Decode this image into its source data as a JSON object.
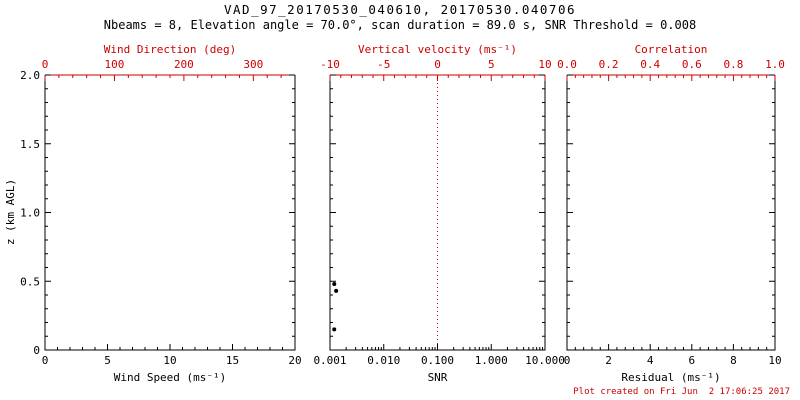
{
  "header": {
    "title": "VAD_97_20170530_040610, 20170530.040706",
    "subtitle": "Nbeams = 8, Elevation angle = 70.0°, scan duration = 89.0 s, SNR Threshold = 0.008"
  },
  "footer": {
    "created_note": "Plot created on Fri Jun  2 17:06:25 2017"
  },
  "colors": {
    "primary_axis": "#000000",
    "secondary_axis": "#cc0000",
    "background": "#ffffff",
    "point": "#000000"
  },
  "chart_data": [
    {
      "type": "scatter",
      "panel": "wind-speed",
      "xlabel": "Wind Speed (ms⁻¹)",
      "xlim": [
        0,
        20
      ],
      "x_ticks": [
        0,
        5,
        10,
        15,
        20
      ],
      "x_tick_labels": [
        "0",
        "5",
        "10",
        "15",
        "20"
      ],
      "top_label": "Wind Direction (deg)",
      "top_lim": [
        0,
        360
      ],
      "top_ticks": [
        0,
        100,
        200,
        300
      ],
      "top_tick_labels": [
        "0",
        "100",
        "200",
        "300"
      ],
      "ylabel": "z (km AGL)",
      "ylim": [
        0,
        2
      ],
      "y_ticks": [
        0,
        0.5,
        1.0,
        1.5,
        2.0
      ],
      "y_tick_labels": [
        "0",
        "0.5",
        "1.0",
        "1.5",
        "2.0"
      ],
      "points": []
    },
    {
      "type": "scatter",
      "panel": "snr",
      "xlabel": "SNR",
      "x_scale": "log",
      "xlim": [
        0.001,
        10
      ],
      "x_ticks": [
        0.001,
        0.01,
        0.1,
        1,
        10
      ],
      "x_tick_labels": [
        "0.001",
        "0.010",
        "0.100",
        "1.000",
        "10.000"
      ],
      "top_label": "Vertical velocity (ms⁻¹)",
      "top_lim": [
        -10,
        10
      ],
      "top_ticks": [
        -10,
        -5,
        0,
        5,
        10
      ],
      "top_tick_labels": [
        "-10",
        "-5",
        "0",
        "5",
        "10"
      ],
      "ylim": [
        0,
        2
      ],
      "y_ticks": [
        0,
        0.5,
        1.0,
        1.5,
        2.0
      ],
      "y_tick_labels": [],
      "reference_line": {
        "x_top": 0,
        "style": "dotted"
      },
      "points": [
        {
          "x": 0.0012,
          "z": 0.48
        },
        {
          "x": 0.0013,
          "z": 0.43
        },
        {
          "x": 0.0012,
          "z": 0.15
        }
      ]
    },
    {
      "type": "scatter",
      "panel": "residual",
      "xlabel": "Residual (ms⁻¹)",
      "xlim": [
        0,
        10
      ],
      "x_ticks": [
        0,
        2,
        4,
        6,
        8,
        10
      ],
      "x_tick_labels": [
        "0",
        "2",
        "4",
        "6",
        "8",
        "10"
      ],
      "top_label": "Correlation",
      "top_lim": [
        0,
        1
      ],
      "top_ticks": [
        0.0,
        0.2,
        0.4,
        0.6,
        0.8,
        1.0
      ],
      "top_tick_labels": [
        "0.0",
        "0.2",
        "0.4",
        "0.6",
        "0.8",
        "1.0"
      ],
      "ylim": [
        0,
        2
      ],
      "y_ticks": [
        0,
        0.5,
        1.0,
        1.5,
        2.0
      ],
      "y_tick_labels": [],
      "points": []
    }
  ]
}
